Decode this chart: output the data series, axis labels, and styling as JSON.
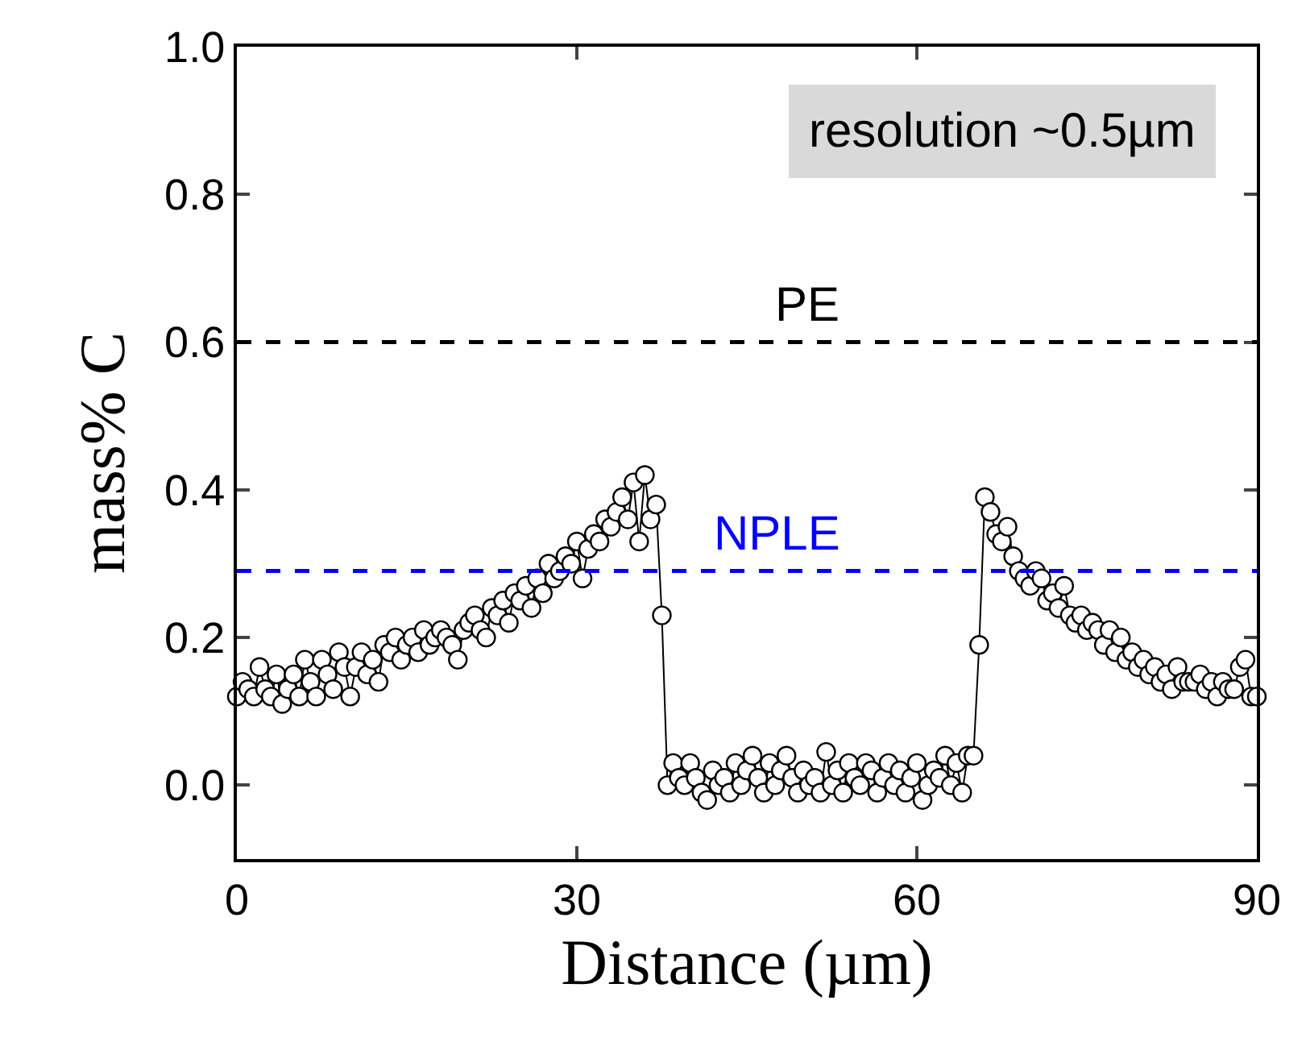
{
  "chart_data": {
    "type": "line",
    "xlabel": "Distance (µm)",
    "ylabel": "mass% C",
    "xlim": [
      0,
      90
    ],
    "xticks": [
      0,
      30,
      60,
      90
    ],
    "ylim": [
      -0.1,
      1.0
    ],
    "yticks": [
      {
        "value": 0,
        "label": "0.0"
      },
      0.2,
      0.4,
      0.6,
      0.8,
      {
        "value": 1,
        "label": "1.0"
      }
    ],
    "marker": "circle",
    "line_style": "solid",
    "ref_lines": [
      {
        "axis": "y",
        "value": 0.6,
        "label": "PE",
        "color": "#000000",
        "line_style": "dashed"
      },
      {
        "axis": "y",
        "value": 0.29,
        "label": "NPLE",
        "color": "#0000ff",
        "line_style": "dashed"
      }
    ],
    "annotations": [
      "resolution ~0.5µm"
    ],
    "series": [
      {
        "color": "#000000",
        "x": [
          0,
          0.5,
          1,
          1.5,
          2,
          2.5,
          3,
          3.5,
          4,
          4.5,
          5,
          5.5,
          6,
          6.5,
          7,
          7.5,
          8,
          8.5,
          9,
          9.5,
          10,
          10.5,
          11,
          11.5,
          12,
          12.5,
          13,
          13.5,
          14,
          14.5,
          15,
          15.5,
          16,
          16.5,
          17,
          17.5,
          18,
          18.5,
          19,
          19.5,
          20,
          20.5,
          21,
          21.5,
          22,
          22.5,
          23,
          23.5,
          24,
          24.5,
          25,
          25.5,
          26,
          26.5,
          27,
          27.5,
          28,
          28.5,
          29,
          29.5,
          30,
          30.5,
          31,
          31.5,
          32,
          32.5,
          33,
          33.5,
          34,
          34.5,
          35,
          35.5,
          36,
          36.5,
          37,
          37.5,
          38,
          38.5,
          39,
          39.5,
          40,
          40.5,
          41,
          41.5,
          42,
          42.5,
          43,
          43.5,
          44,
          44.5,
          45,
          45.5,
          46,
          46.5,
          47,
          47.5,
          48,
          48.5,
          49,
          49.5,
          50,
          50.5,
          51,
          51.5,
          52,
          52.5,
          53,
          53.5,
          54,
          54.5,
          55,
          55.5,
          56,
          56.5,
          57,
          57.5,
          58,
          58.5,
          59,
          59.5,
          60,
          60.5,
          61,
          61.5,
          62,
          62.5,
          63,
          63.5,
          64,
          64.5,
          65,
          65.5,
          66,
          66.5,
          67,
          67.5,
          68,
          68.5,
          69,
          69.5,
          70,
          70.5,
          71,
          71.5,
          72,
          72.5,
          73,
          73.5,
          74,
          74.5,
          75,
          75.5,
          76,
          76.5,
          77,
          77.5,
          78,
          78.5,
          79,
          79.5,
          80,
          80.5,
          81,
          81.5,
          82,
          82.5,
          83,
          83.5,
          84,
          84.5,
          85,
          85.5,
          86,
          86.5,
          87,
          87.5,
          88,
          88.5,
          89,
          89.5,
          90
        ],
        "values": [
          0.12,
          0.14,
          0.13,
          0.12,
          0.16,
          0.13,
          0.12,
          0.15,
          0.11,
          0.13,
          0.15,
          0.12,
          0.17,
          0.14,
          0.12,
          0.17,
          0.15,
          0.13,
          0.18,
          0.16,
          0.12,
          0.16,
          0.18,
          0.15,
          0.17,
          0.14,
          0.19,
          0.18,
          0.2,
          0.17,
          0.19,
          0.2,
          0.18,
          0.21,
          0.19,
          0.2,
          0.21,
          0.2,
          0.19,
          0.17,
          0.21,
          0.22,
          0.23,
          0.21,
          0.2,
          0.24,
          0.23,
          0.25,
          0.22,
          0.26,
          0.25,
          0.27,
          0.24,
          0.28,
          0.26,
          0.3,
          0.28,
          0.29,
          0.31,
          0.3,
          0.33,
          0.28,
          0.32,
          0.34,
          0.33,
          0.36,
          0.35,
          0.37,
          0.39,
          0.36,
          0.41,
          0.33,
          0.42,
          0.36,
          0.38,
          0.23,
          0.0,
          0.03,
          0.01,
          0.0,
          0.03,
          0.01,
          -0.01,
          -0.02,
          0.02,
          0.0,
          0.01,
          -0.01,
          0.03,
          0.0,
          0.02,
          0.04,
          0.01,
          -0.01,
          0.03,
          0.0,
          0.02,
          0.04,
          0.01,
          -0.01,
          0.02,
          0.0,
          0.01,
          -0.01,
          0.045,
          0.0,
          0.02,
          -0.01,
          0.03,
          0.01,
          0.0,
          0.03,
          0.02,
          -0.01,
          0.01,
          0.03,
          0.0,
          0.02,
          -0.01,
          0.01,
          0.03,
          -0.02,
          0.0,
          0.02,
          0.01,
          0.04,
          0.0,
          0.03,
          -0.01,
          0.04,
          0.04,
          0.19,
          0.39,
          0.37,
          0.34,
          0.33,
          0.35,
          0.31,
          0.29,
          0.28,
          0.27,
          0.29,
          0.28,
          0.25,
          0.26,
          0.24,
          0.27,
          0.23,
          0.22,
          0.23,
          0.21,
          0.22,
          0.21,
          0.19,
          0.21,
          0.18,
          0.2,
          0.17,
          0.18,
          0.16,
          0.17,
          0.15,
          0.16,
          0.14,
          0.15,
          0.13,
          0.16,
          0.14,
          0.14,
          0.14,
          0.15,
          0.13,
          0.14,
          0.12,
          0.14,
          0.13,
          0.13,
          0.16,
          0.17,
          0.12,
          0.12
        ]
      }
    ]
  }
}
